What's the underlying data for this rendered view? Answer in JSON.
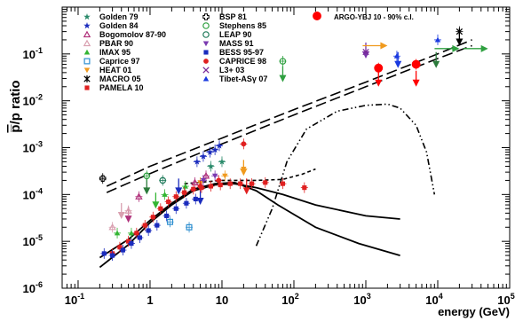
{
  "chart_data": {
    "type": "scatter",
    "title": "",
    "ylabel_parts": [
      "p̅",
      "/p ratio"
    ],
    "xlabel": "energy (GeV)",
    "x_scale": "log",
    "y_scale": "log",
    "xlim": [
      0.06,
      100000
    ],
    "ylim": [
      1e-06,
      1
    ],
    "grid": false,
    "x_ticks": [
      {
        "v": 0.1,
        "b": "10",
        "e": "-1"
      },
      {
        "v": 1,
        "b": "1",
        "e": ""
      },
      {
        "v": 10,
        "b": "10",
        "e": ""
      },
      {
        "v": 100,
        "b": "10",
        "e": "2"
      },
      {
        "v": 1000,
        "b": "10",
        "e": "3"
      },
      {
        "v": 10000,
        "b": "10",
        "e": "4"
      },
      {
        "v": 100000,
        "b": "10",
        "e": "5"
      }
    ],
    "y_ticks": [
      {
        "v": 1e-06,
        "b": "10",
        "e": "-6"
      },
      {
        "v": 1e-05,
        "b": "10",
        "e": "-5"
      },
      {
        "v": 0.0001,
        "b": "10",
        "e": "-4"
      },
      {
        "v": 0.001,
        "b": "10",
        "e": "-3"
      },
      {
        "v": 0.01,
        "b": "10",
        "e": "-2"
      },
      {
        "v": 0.1,
        "b": "10",
        "e": "-1"
      }
    ],
    "legend": {
      "placement": "top-left",
      "column_1": [
        {
          "label": "Golden 79",
          "color": "#2a8a6a",
          "marker": "star"
        },
        {
          "label": "Golden 84",
          "color": "#1a2bbd",
          "marker": "star"
        },
        {
          "label": "Bogomolov 87-90",
          "color": "#b0307a",
          "marker": "triangle-open"
        },
        {
          "label": "PBAR 90",
          "color": "#d9a0b0",
          "marker": "triangle-open"
        },
        {
          "label": "IMAX 95",
          "color": "#33b533",
          "marker": "triangle"
        },
        {
          "label": "Caprice 97",
          "color": "#2e8fd0",
          "marker": "square-open"
        },
        {
          "label": "HEAT 01",
          "color": "#f09a1e",
          "marker": "triangle-down"
        },
        {
          "label": "MACRO 05",
          "color": "#000000",
          "marker": "asterisk"
        },
        {
          "label": "PAMELA 10",
          "color": "#e02020",
          "marker": "square"
        }
      ],
      "column_2": [
        {
          "label": "BSP 81",
          "color": "#000000",
          "marker": "cross-open"
        },
        {
          "label": "Stephens 85",
          "color": "#2fa040",
          "marker": "circle-open"
        },
        {
          "label": "LEAP 90",
          "color": "#1e7a5a",
          "marker": "circle-open"
        },
        {
          "label": "MASS 91",
          "color": "#7a3ab0",
          "marker": "triangle-down"
        },
        {
          "label": "BESS 95-97",
          "color": "#1a2bbd",
          "marker": "square"
        },
        {
          "label": "CAPRICE 98",
          "color": "#e02020",
          "marker": "circle"
        },
        {
          "label": "L3+ 03",
          "color": "#7a2a9a",
          "marker": "x"
        },
        {
          "label": "Tibet-ASγ 07",
          "color": "#1a3ae0",
          "marker": "triangle"
        }
      ],
      "column_3": [
        {
          "label": "ARGO-YBJ 10 - 90% c.l.",
          "color": "#ff0000",
          "marker": "circle"
        }
      ]
    },
    "series": [
      {
        "name": "Golden 79",
        "marker": "star",
        "color": "#2a8a6a",
        "points": [
          {
            "x": 7,
            "y": 0.0004
          },
          {
            "x": 10,
            "y": 0.0005
          }
        ]
      },
      {
        "name": "Golden 84",
        "marker": "star",
        "color": "#1a2bbd",
        "points": [
          {
            "x": 4.5,
            "y": 0.0005
          },
          {
            "x": 5.5,
            "y": 0.00065
          },
          {
            "x": 6.8,
            "y": 0.0008
          },
          {
            "x": 8,
            "y": 0.0009
          },
          {
            "x": 9.2,
            "y": 0.0011
          }
        ]
      },
      {
        "name": "Bogomolov 87-90",
        "marker": "triangle-open",
        "color": "#b0307a",
        "points": [
          {
            "x": 0.7,
            "y": 9e-05
          },
          {
            "x": 4.2,
            "y": 0.00018
          },
          {
            "x": 6,
            "y": 0.00025
          }
        ]
      },
      {
        "name": "PBAR 90",
        "marker": "triangle-open",
        "color": "#d9a0b0",
        "points": [
          {
            "x": 0.3,
            "y": 2e-05
          },
          {
            "x": 0.5,
            "y": 4.5e-05
          }
        ]
      },
      {
        "name": "IMAX 95",
        "marker": "triangle",
        "color": "#33b533",
        "points": [
          {
            "x": 0.35,
            "y": 1.5e-05
          },
          {
            "x": 0.55,
            "y": 1.5e-05
          },
          {
            "x": 1.6,
            "y": 0.0001
          },
          {
            "x": 3.1,
            "y": 0.00015
          }
        ]
      },
      {
        "name": "Caprice 97",
        "marker": "square-open",
        "color": "#2e8fd0",
        "points": [
          {
            "x": 1.9,
            "y": 2.6e-05
          },
          {
            "x": 3.5,
            "y": 2e-05
          }
        ]
      },
      {
        "name": "HEAT 01",
        "marker": "triangle-down",
        "color": "#f09a1e",
        "points": [
          {
            "x": 5,
            "y": 0.00018
          },
          {
            "x": 11,
            "y": 0.00025
          },
          {
            "x": 20,
            "y": 0.00035
          }
        ]
      },
      {
        "name": "MACRO 05",
        "marker": "asterisk",
        "color": "#000000",
        "points": [
          {
            "x": 20000,
            "y": 0.3
          }
        ]
      },
      {
        "name": "PAMELA 10",
        "marker": "square",
        "color": "#e02020",
        "points": [
          {
            "x": 0.3,
            "y": 5.5e-06
          },
          {
            "x": 0.38,
            "y": 7.5e-06
          },
          {
            "x": 0.5,
            "y": 1e-05
          },
          {
            "x": 0.65,
            "y": 1.5e-05
          },
          {
            "x": 0.85,
            "y": 2.2e-05
          },
          {
            "x": 1.1,
            "y": 3.3e-05
          },
          {
            "x": 1.4,
            "y": 5e-05
          },
          {
            "x": 1.8,
            "y": 7e-05
          },
          {
            "x": 2.3,
            "y": 9e-05
          },
          {
            "x": 3,
            "y": 0.00011
          },
          {
            "x": 4,
            "y": 0.00013
          },
          {
            "x": 5.2,
            "y": 0.00014
          },
          {
            "x": 7,
            "y": 0.00015
          },
          {
            "x": 9.5,
            "y": 0.00016
          },
          {
            "x": 13,
            "y": 0.00017
          },
          {
            "x": 18,
            "y": 0.00017
          },
          {
            "x": 26,
            "y": 0.00017
          },
          {
            "x": 40,
            "y": 0.00018
          },
          {
            "x": 70,
            "y": 0.00017
          },
          {
            "x": 140,
            "y": 0.00014
          }
        ]
      },
      {
        "name": "BSP 81",
        "marker": "cross-open",
        "color": "#000000",
        "points": [
          {
            "x": 0.22,
            "y": 0.00022
          }
        ]
      },
      {
        "name": "Stephens 85",
        "marker": "circle-open",
        "color": "#2fa040",
        "points": [
          {
            "x": 0.9,
            "y": 0.00025
          },
          {
            "x": 70,
            "y": 0.07
          }
        ]
      },
      {
        "name": "LEAP 90",
        "marker": "circle-open",
        "color": "#1e7a5a",
        "points": [
          {
            "x": 1.5,
            "y": 0.0002
          }
        ]
      },
      {
        "name": "MASS 91",
        "marker": "triangle-down",
        "color": "#7a3ab0",
        "points": [
          {
            "x": 5.5,
            "y": 0.0002
          },
          {
            "x": 8,
            "y": 0.00025
          }
        ]
      },
      {
        "name": "BESS 95-97",
        "marker": "square",
        "color": "#1a2bbd",
        "points": [
          {
            "x": 0.23,
            "y": 5.5e-06
          },
          {
            "x": 0.3,
            "y": 5e-06
          },
          {
            "x": 0.42,
            "y": 6.5e-06
          },
          {
            "x": 0.55,
            "y": 9e-06
          },
          {
            "x": 0.72,
            "y": 1.2e-05
          },
          {
            "x": 0.95,
            "y": 1.7e-05
          },
          {
            "x": 1.25,
            "y": 2.2e-05
          },
          {
            "x": 1.7,
            "y": 3.5e-05
          },
          {
            "x": 2.3,
            "y": 5e-05
          },
          {
            "x": 3.2,
            "y": 6.5e-05
          },
          {
            "x": 4.3,
            "y": 8e-05
          }
        ]
      },
      {
        "name": "CAPRICE 98",
        "marker": "circle",
        "color": "#e02020",
        "points": [
          {
            "x": 5,
            "y": 0.00015
          },
          {
            "x": 9,
            "y": 0.0002
          },
          {
            "x": 20,
            "y": 0.0012
          }
        ]
      },
      {
        "name": "L3+ 03",
        "marker": "x",
        "color": "#7a2a9a",
        "points": [
          {
            "x": 1000,
            "y": 0.11
          }
        ]
      },
      {
        "name": "Tibet-ASγ 07",
        "marker": "triangle",
        "color": "#1a3ae0",
        "points": [
          {
            "x": 2700,
            "y": 0.09
          },
          {
            "x": 10000,
            "y": 0.2
          }
        ]
      },
      {
        "name": "ARGO-YBJ 10 - 90% c.l.",
        "marker": "circle",
        "color": "#ff0000",
        "points": [
          {
            "x": 1500,
            "y": 0.05
          },
          {
            "x": 5000,
            "y": 0.06
          }
        ]
      }
    ],
    "upper_limit_arrows": [
      {
        "x": 0.9,
        "y": 0.0001,
        "color": "#2a7a3a"
      },
      {
        "x": 0.4,
        "y": 3e-05,
        "color": "#d9a0b0"
      },
      {
        "x": 0.5,
        "y": 2.5e-05,
        "color": "#b0307a"
      },
      {
        "x": 1.2,
        "y": 5e-05,
        "color": "#33b533"
      },
      {
        "x": 2.5,
        "y": 0.0001,
        "color": "#1a2bbd"
      },
      {
        "x": 5,
        "y": 6e-05,
        "color": "#1a2bbd"
      },
      {
        "x": 22,
        "y": 0.0001,
        "color": "#e02020"
      },
      {
        "x": 20,
        "y": 0.00025,
        "color": "#f09a1e"
      },
      {
        "x": 70,
        "y": 0.025,
        "color": "#2fa040"
      },
      {
        "x": 1000,
        "y": 0.08,
        "color": "#7a3ab0"
      },
      {
        "x": 1500,
        "y": 0.02,
        "color": "#ff0000"
      },
      {
        "x": 2800,
        "y": 0.05,
        "color": "#1a3ae0"
      },
      {
        "x": 5000,
        "y": 0.02,
        "color": "#ff0000"
      },
      {
        "x": 9500,
        "y": 0.05,
        "color": "#2a7a3a"
      },
      {
        "x": 20000,
        "y": 0.15,
        "color": "#000000"
      }
    ],
    "rightward_arrows": [
      {
        "x": 1200,
        "y": 0.15,
        "color": "#f09a1e"
      },
      {
        "x": 12000,
        "y": 0.13,
        "color": "#2fa040"
      },
      {
        "x": 30000,
        "y": 0.13,
        "color": "#2fa040"
      }
    ],
    "curves": [
      {
        "style": "solid",
        "points": [
          [
            0.2,
            2.8e-06
          ],
          [
            0.5,
            8.5e-06
          ],
          [
            1,
            2.5e-05
          ],
          [
            2,
            6e-05
          ],
          [
            4,
            0.00012
          ],
          [
            8,
            0.00016
          ],
          [
            15,
            0.00017
          ],
          [
            30,
            0.00014
          ],
          [
            70,
            0.0001
          ],
          [
            200,
            6e-05
          ],
          [
            1000,
            3.5e-05
          ],
          [
            3000,
            3e-05
          ]
        ]
      },
      {
        "style": "solid",
        "points": [
          [
            0.2,
            4.5e-06
          ],
          [
            0.5,
            1.1e-05
          ],
          [
            1,
            2.8e-05
          ],
          [
            2,
            6.5e-05
          ],
          [
            4,
            0.00013
          ],
          [
            8,
            0.00017
          ],
          [
            15,
            0.00018
          ],
          [
            30,
            0.00012
          ],
          [
            60,
            6e-05
          ],
          [
            200,
            2e-05
          ],
          [
            800,
            9e-06
          ],
          [
            3000,
            5e-06
          ]
        ]
      },
      {
        "style": "dashed",
        "points": [
          [
            3,
            0.00017
          ],
          [
            10,
            0.0002
          ],
          [
            30,
            0.0002
          ],
          [
            70,
            0.00021
          ],
          [
            130,
            0.00027
          ],
          [
            200,
            0.00035
          ]
        ]
      },
      {
        "style": "long-dash",
        "points": [
          [
            0.25,
            0.00011
          ],
          [
            1,
            0.00028
          ],
          [
            10,
            0.0012
          ],
          [
            100,
            0.005
          ],
          [
            1000,
            0.02
          ],
          [
            10000,
            0.08
          ],
          [
            30000,
            0.15
          ]
        ]
      },
      {
        "style": "long-dash",
        "points": [
          [
            0.25,
            0.00015
          ],
          [
            1,
            0.0004
          ],
          [
            10,
            0.0016
          ],
          [
            100,
            0.0065
          ],
          [
            1000,
            0.025
          ],
          [
            10000,
            0.1
          ],
          [
            30000,
            0.2
          ]
        ]
      },
      {
        "style": "dash-dot-dot",
        "points": [
          [
            30,
            8e-06
          ],
          [
            50,
            5e-05
          ],
          [
            80,
            0.0005
          ],
          [
            150,
            0.0025
          ],
          [
            400,
            0.006
          ],
          [
            1000,
            0.008
          ],
          [
            2000,
            0.0085
          ],
          [
            3000,
            0.007
          ],
          [
            5000,
            0.003
          ],
          [
            7000,
            0.0008
          ],
          [
            9000,
            0.0001
          ]
        ]
      }
    ]
  }
}
